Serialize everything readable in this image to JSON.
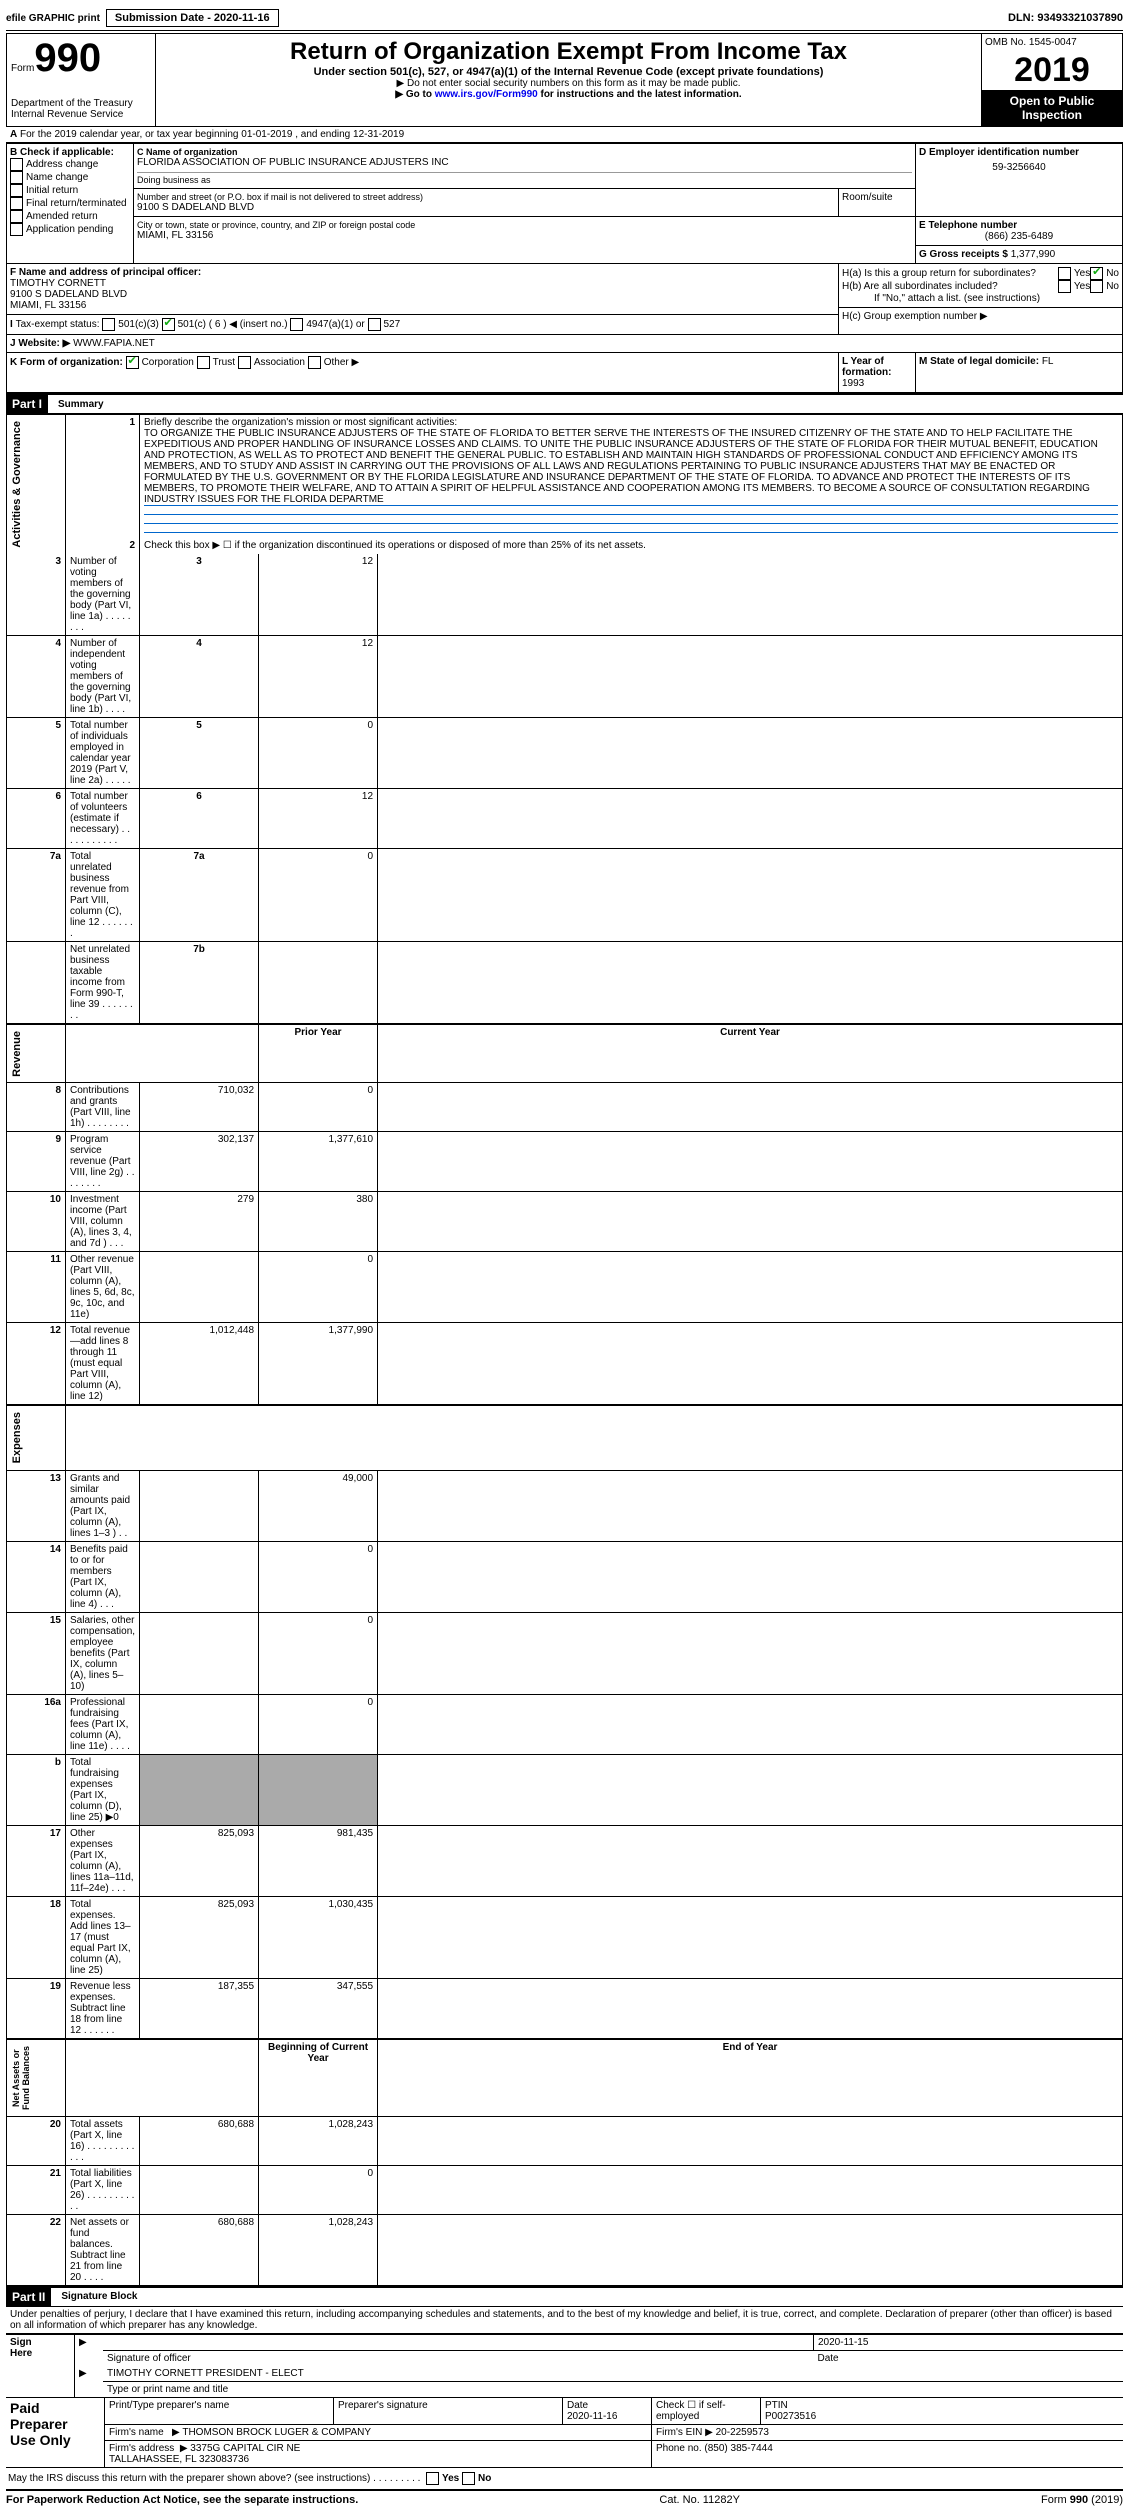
{
  "top": {
    "efile": "efile GRAPHIC print",
    "subdate_label": "Submission Date - 2020-11-16",
    "dln": "DLN: 93493321037890"
  },
  "header": {
    "form": "Form",
    "num": "990",
    "dept": "Department of the Treasury\nInternal Revenue Service",
    "title": "Return of Organization Exempt From Income Tax",
    "sub1": "Under section 501(c), 527, or 4947(a)(1) of the Internal Revenue Code (except private foundations)",
    "sub2": "▶ Do not enter social security numbers on this form as it may be made public.",
    "sub3": "▶ Go to www.irs.gov/Form990 for instructions and the latest information.",
    "omb": "OMB No. 1545-0047",
    "year": "2019",
    "open": "Open to Public\nInspection"
  },
  "headerA": {
    "period": "For the 2019 calendar year, or tax year beginning 01-01-2019   , and ending 12-31-2019"
  },
  "boxB": {
    "label": "B Check if applicable:",
    "opts": [
      "Address change",
      "Name change",
      "Initial return",
      "Final return/terminated",
      "Amended return",
      "Application pending"
    ]
  },
  "boxC": {
    "name_lbl": "C Name of organization",
    "name": "FLORIDA ASSOCIATION OF PUBLIC INSURANCE ADJUSTERS INC",
    "dba_lbl": "Doing business as",
    "addr_lbl": "Number and street (or P.O. box if mail is not delivered to street address)",
    "room_lbl": "Room/suite",
    "addr": "9100 S DADELAND BLVD",
    "city_lbl": "City or town, state or province, country, and ZIP or foreign postal code",
    "city": "MIAMI, FL  33156"
  },
  "boxD": {
    "lbl": "D Employer identification number",
    "val": "59-3256640"
  },
  "boxE": {
    "lbl": "E Telephone number",
    "val": "(866) 235-6489"
  },
  "boxG": {
    "lbl": "G Gross receipts $",
    "val": "1,377,990"
  },
  "boxF": {
    "lbl": "F  Name and address of principal officer:",
    "val": "TIMOTHY CORNETT\n9100 S DADELAND BLVD\nMIAMI, FL  33156"
  },
  "boxH": {
    "a": "H(a)  Is this a group return for subordinates?",
    "b": "H(b)  Are all subordinates included?",
    "bnote": "If \"No,\" attach a list. (see instructions)",
    "c": "H(c)  Group exemption number ▶",
    "yes": "Yes",
    "no": "No"
  },
  "boxI": {
    "lbl": "Tax-exempt status:",
    "o1": "501(c)(3)",
    "o2": "501(c) ( 6 ) ◀ (insert no.)",
    "o3": "4947(a)(1) or",
    "o4": "527"
  },
  "boxJ": {
    "lbl": "J   Website: ▶",
    "val": "WWW.FAPIA.NET"
  },
  "boxK": {
    "lbl": "K Form of organization:",
    "o1": "Corporation",
    "o2": "Trust",
    "o3": "Association",
    "o4": "Other ▶"
  },
  "boxL": {
    "lbl": "L Year of formation:",
    "val": "1993"
  },
  "boxM": {
    "lbl": "M State of legal domicile:",
    "val": "FL"
  },
  "partI": {
    "title": "Summary",
    "l1lbl": "Briefly describe the organization's mission or most significant activities:",
    "l1": "TO ORGANIZE THE PUBLIC INSURANCE ADJUSTERS OF THE STATE OF FLORIDA TO BETTER SERVE THE INTERESTS OF THE INSURED CITIZENRY OF THE STATE AND TO HELP FACILITATE THE EXPEDITIOUS AND PROPER HANDLING OF INSURANCE LOSSES AND CLAIMS. TO UNITE THE PUBLIC INSURANCE ADJUSTERS OF THE STATE OF FLORIDA FOR THEIR MUTUAL BENEFIT, EDUCATION AND PROTECTION, AS WELL AS TO PROTECT AND BENEFIT THE GENERAL PUBLIC. TO ESTABLISH AND MAINTAIN HIGH STANDARDS OF PROFESSIONAL CONDUCT AND EFFICIENCY AMONG ITS MEMBERS, AND TO STUDY AND ASSIST IN CARRYING OUT THE PROVISIONS OF ALL LAWS AND REGULATIONS PERTAINING TO PUBLIC INSURANCE ADJUSTERS THAT MAY BE ENACTED OR FORMULATED BY THE U.S. GOVERNMENT OR BY THE FLORIDA LEGISLATURE AND INSURANCE DEPARTMENT OF THE STATE OF FLORIDA. TO ADVANCE AND PROTECT THE INTERESTS OF ITS MEMBERS, TO PROMOTE THEIR WELFARE, AND TO ATTAIN A SPIRIT OF HELPFUL ASSISTANCE AND COOPERATION AMONG ITS MEMBERS. TO BECOME A SOURCE OF CONSULTATION REGARDING INDUSTRY ISSUES FOR THE FLORIDA DEPARTME",
    "l2": "Check this box ▶ ☐ if the organization discontinued its operations or disposed of more than 25% of its net assets.",
    "lines": [
      {
        "n": "3",
        "d": "Number of voting members of the governing body (Part VI, line 1a)  .   .   .   .   .   .   .   .",
        "c": "3",
        "v": "12"
      },
      {
        "n": "4",
        "d": "Number of independent voting members of the governing body (Part VI, line 1b)   .   .   .   .",
        "c": "4",
        "v": "12"
      },
      {
        "n": "5",
        "d": "Total number of individuals employed in calendar year 2019 (Part V, line 2a)  .   .   .   .   .",
        "c": "5",
        "v": "0"
      },
      {
        "n": "6",
        "d": "Total number of volunteers (estimate if necessary)  .   .   .   .   .   .   .   .   .   .   .",
        "c": "6",
        "v": "12"
      },
      {
        "n": "7a",
        "d": "Total unrelated business revenue from Part VIII, column (C), line 12  .   .   .   .   .   .   .",
        "c": "7a",
        "v": "0"
      },
      {
        "n": "",
        "d": "Net unrelated business taxable income from Form 990-T, line 39   .   .   .   .   .   .   .   .",
        "c": "7b",
        "v": ""
      }
    ]
  },
  "twoCol": {
    "h1": "Prior Year",
    "h2": "Current Year",
    "h3": "Beginning of Current Year",
    "h4": "End of Year",
    "rev": [
      {
        "n": "8",
        "d": "Contributions and grants (Part VIII, line 1h)  .   .   .   .   .   .   .   .",
        "p": "710,032",
        "c": "0"
      },
      {
        "n": "9",
        "d": "Program service revenue (Part VIII, line 2g)  .   .   .   .   .   .   .   .",
        "p": "302,137",
        "c": "1,377,610"
      },
      {
        "n": "10",
        "d": "Investment income (Part VIII, column (A), lines 3, 4, and 7d )   .   .   .",
        "p": "279",
        "c": "380"
      },
      {
        "n": "11",
        "d": "Other revenue (Part VIII, column (A), lines 5, 6d, 8c, 9c, 10c, and 11e)",
        "p": "",
        "c": "0"
      },
      {
        "n": "12",
        "d": "Total revenue—add lines 8 through 11 (must equal Part VIII, column (A), line 12)",
        "p": "1,012,448",
        "c": "1,377,990"
      }
    ],
    "exp": [
      {
        "n": "13",
        "d": "Grants and similar amounts paid (Part IX, column (A), lines 1–3 )  .   .",
        "p": "",
        "c": "49,000"
      },
      {
        "n": "14",
        "d": "Benefits paid to or for members (Part IX, column (A), line 4)  .   .   .",
        "p": "",
        "c": "0"
      },
      {
        "n": "15",
        "d": "Salaries, other compensation, employee benefits (Part IX, column (A), lines 5–10)",
        "p": "",
        "c": "0"
      },
      {
        "n": "16a",
        "d": "Professional fundraising fees (Part IX, column (A), line 11e)   .   .   .   .",
        "p": "",
        "c": "0"
      },
      {
        "n": "b",
        "d": "Total fundraising expenses (Part IX, column (D), line 25) ▶0",
        "p": "GRAY",
        "c": "GRAY"
      },
      {
        "n": "17",
        "d": "Other expenses (Part IX, column (A), lines 11a–11d, 11f–24e)  .   .   .",
        "p": "825,093",
        "c": "981,435"
      },
      {
        "n": "18",
        "d": "Total expenses. Add lines 13–17 (must equal Part IX, column (A), line 25)",
        "p": "825,093",
        "c": "1,030,435"
      },
      {
        "n": "19",
        "d": "Revenue less expenses. Subtract line 18 from line 12  .   .   .   .   .   .",
        "p": "187,355",
        "c": "347,555"
      }
    ],
    "net": [
      {
        "n": "20",
        "d": "Total assets (Part X, line 16)  .   .   .   .   .   .   .   .   .   .   .   .",
        "p": "680,688",
        "c": "1,028,243"
      },
      {
        "n": "21",
        "d": "Total liabilities (Part X, line 26)  .   .   .   .   .   .   .   .   .   .   .",
        "p": "",
        "c": "0"
      },
      {
        "n": "22",
        "d": "Net assets or fund balances. Subtract line 21 from line 20  .   .   .   .",
        "p": "680,688",
        "c": "1,028,243"
      }
    ]
  },
  "sideLabels": {
    "ag": "Activities & Governance",
    "rev": "Revenue",
    "exp": "Expenses",
    "net": "Net Assets or\nFund Balances"
  },
  "partII": {
    "title": "Signature Block",
    "decl": "Under penalties of perjury, I declare that I have examined this return, including accompanying schedules and statements, and to the best of my knowledge and belief, it is true, correct, and complete. Declaration of preparer (other than officer) is based on all information of which preparer has any knowledge."
  },
  "sign": {
    "here": "Sign\nHere",
    "sigoff": "Signature of officer",
    "date": "Date",
    "dateval": "2020-11-15",
    "name": "TIMOTHY CORNETT PRESIDENT - ELECT",
    "type": "Type or print name and title"
  },
  "paid": {
    "lbl": "Paid\nPreparer\nUse Only",
    "pname": "Print/Type preparer's name",
    "psig": "Preparer's signature",
    "pdate": "Date",
    "pdateval": "2020-11-16",
    "chk": "Check ☐ if self-employed",
    "ptin": "PTIN",
    "ptinval": "P00273516",
    "fname": "Firm's name",
    "fnameval": "▶ THOMSON BROCK LUGER & COMPANY",
    "fein": "Firm's EIN ▶",
    "feinval": "20-2259573",
    "faddr": "Firm's address",
    "faddrval": "▶ 3375G CAPITAL CIR NE\n       TALLAHASSEE, FL  323083736",
    "phone": "Phone no.",
    "phoneval": "(850) 385-7444"
  },
  "foot": {
    "discuss": "May the IRS discuss this return with the preparer shown above? (see instructions)   .   .   .   .   .   .   .   .   .",
    "pra": "For Paperwork Reduction Act Notice, see the separate instructions.",
    "cat": "Cat. No. 11282Y",
    "form": "Form 990 (2019)"
  }
}
